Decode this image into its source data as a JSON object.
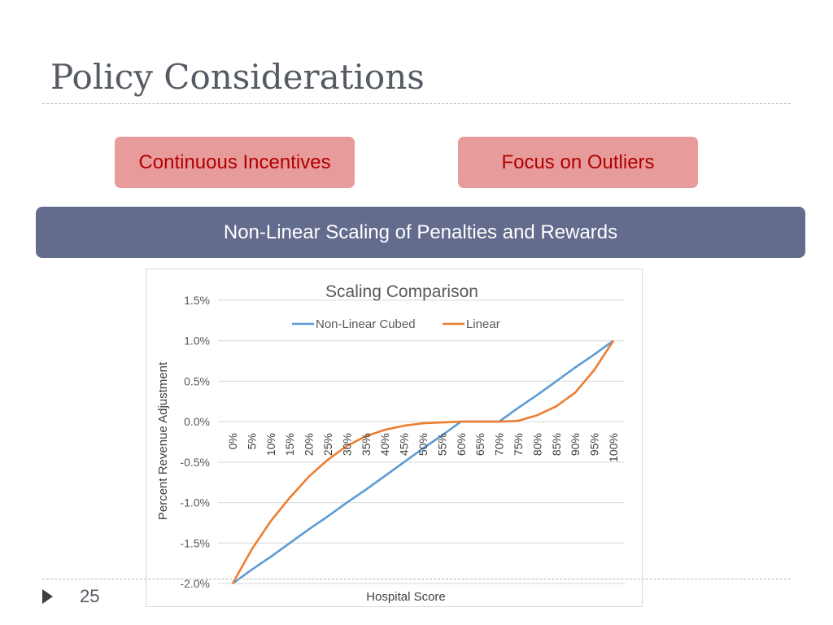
{
  "slide": {
    "title": "Policy Considerations",
    "page_number": "25",
    "boxes": {
      "left_label": "Continuous Incentives",
      "right_label": "Focus on Outliers",
      "banner_label": "Non-Linear Scaling of Penalties and Rewards"
    }
  },
  "colors": {
    "blue": "#5b9bd5",
    "orange": "#ed7d31"
  },
  "chart_data": {
    "type": "line",
    "title": "Scaling Comparison",
    "xlabel": "Hospital Score",
    "ylabel": "Percent Revenue Adjustment",
    "categories": [
      "0%",
      "5%",
      "10%",
      "15%",
      "20%",
      "25%",
      "30%",
      "35%",
      "40%",
      "45%",
      "50%",
      "55%",
      "60%",
      "65%",
      "70%",
      "75%",
      "80%",
      "85%",
      "90%",
      "95%",
      "100%"
    ],
    "yticks": [
      "1.5%",
      "1.0%",
      "0.5%",
      "0.0%",
      "-0.5%",
      "-1.0%",
      "-1.5%",
      "-2.0%"
    ],
    "ylim": [
      -2.0,
      1.5
    ],
    "grid": true,
    "legend_position": "top",
    "series": [
      {
        "name": "Non-Linear Cubed",
        "color": "#5b9bd5",
        "values": [
          -2.0,
          -1.83,
          -1.67,
          -1.5,
          -1.33,
          -1.17,
          -1.0,
          -0.84,
          -0.67,
          -0.5,
          -0.33,
          -0.17,
          0.0,
          0.0,
          0.0,
          0.17,
          0.33,
          0.5,
          0.67,
          0.83,
          1.0
        ]
      },
      {
        "name": "Linear",
        "color": "#ed7d31",
        "values": [
          -2.0,
          -1.58,
          -1.23,
          -0.94,
          -0.68,
          -0.47,
          -0.3,
          -0.18,
          -0.1,
          -0.05,
          -0.02,
          -0.01,
          0.0,
          0.0,
          0.0,
          0.01,
          0.08,
          0.19,
          0.36,
          0.64,
          1.0
        ]
      }
    ]
  }
}
